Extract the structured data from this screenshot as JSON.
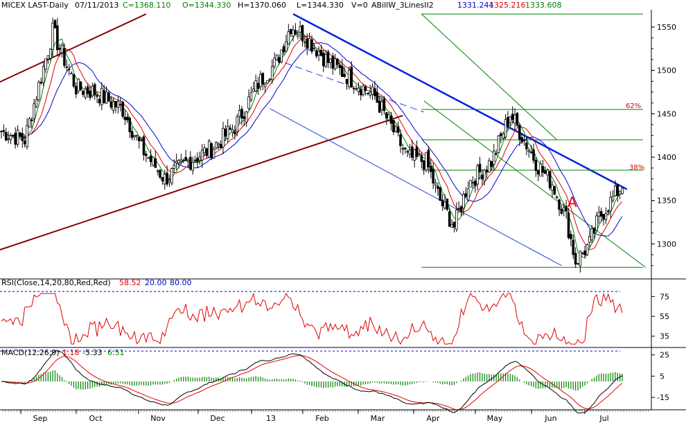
{
  "header": {
    "main": {
      "name": "MICEX LAST-Daily",
      "date": "07/11/2013",
      "close": "C=1368.110",
      "open": "O=1344.330",
      "high": "H=1370.060",
      "low": "L=1344.330",
      "volume": "V=0",
      "study": "ABillW_3LinesII2",
      "study_v1": "1331.244",
      "study_v2": "1325.216",
      "study_v3": "1333.608"
    },
    "rsi": {
      "label": "RSI(Close,14,20,80,Red,Red)",
      "value": "58.52",
      "low": "20.00",
      "high": "80.00"
    },
    "macd": {
      "label": "MACD(12,26,9)",
      "v1": "1.18",
      "v2": "-5.33",
      "v3": "6.51"
    }
  },
  "annotations": {
    "fib_62": "62%",
    "fib_38": "38%",
    "wave_label": "A"
  },
  "colors": {
    "green": "#008000",
    "red": "#e00000",
    "blue": "#0000cc",
    "trend_blue": "#0022dd",
    "maroon": "#800000",
    "gray_axis": "#808080"
  },
  "chart_data": [
    {
      "type": "candlestick",
      "title": "MICEX LAST-Daily",
      "x_months": [
        "Sep",
        "Oct",
        "Nov",
        "Dec",
        "13",
        "Feb",
        "Mar",
        "Apr",
        "May",
        "Jun",
        "Jul"
      ],
      "y_ticks": [
        1550,
        1500,
        1450,
        1400,
        1350,
        1300
      ],
      "ylim": [
        1262,
        1570
      ],
      "grid": false,
      "price_path": [
        [
          0,
          1430
        ],
        [
          10,
          1420
        ],
        [
          22,
          1545
        ],
        [
          32,
          1480
        ],
        [
          40,
          1475
        ],
        [
          52,
          1455
        ],
        [
          60,
          1410
        ],
        [
          70,
          1375
        ],
        [
          80,
          1395
        ],
        [
          90,
          1410
        ],
        [
          100,
          1435
        ],
        [
          110,
          1485
        ],
        [
          118,
          1510
        ],
        [
          124,
          1552
        ],
        [
          130,
          1540
        ],
        [
          140,
          1510
        ],
        [
          150,
          1490
        ],
        [
          160,
          1470
        ],
        [
          166,
          1440
        ],
        [
          174,
          1400
        ],
        [
          182,
          1395
        ],
        [
          188,
          1350
        ],
        [
          194,
          1320
        ],
        [
          200,
          1370
        ],
        [
          210,
          1395
        ],
        [
          218,
          1450
        ],
        [
          226,
          1410
        ],
        [
          230,
          1390
        ],
        [
          236,
          1370
        ],
        [
          242,
          1330
        ],
        [
          246,
          1280
        ],
        [
          252,
          1300
        ],
        [
          256,
          1330
        ],
        [
          260,
          1345
        ],
        [
          266,
          1368
        ]
      ],
      "total_bars": 266,
      "indicators": [
        {
          "name": "ABillW_3LinesII2 line 1",
          "values": "1331.244"
        },
        {
          "name": "ABillW_3LinesII2 line 2",
          "values": "1325.216"
        },
        {
          "name": "ABillW_3LinesII2 line 3",
          "values": "1333.608"
        }
      ],
      "fib_levels": [
        {
          "label": "62%",
          "value": 1455
        },
        {
          "label": "38%",
          "value": 1385
        }
      ],
      "extra_levels": [
        1565,
        1420,
        1273
      ],
      "wave_label": {
        "text": "A",
        "at": [
          246,
          1355
        ]
      }
    },
    {
      "type": "line",
      "title": "RSI(Close,14,20,80,Red,Red)",
      "y_ticks": [
        75,
        55,
        35
      ],
      "ylim": [
        25,
        85
      ],
      "bands": [
        80,
        20
      ],
      "last_value": 58.52
    },
    {
      "type": "line",
      "title": "MACD(12,26,9)",
      "y_ticks": [
        25,
        5,
        -15
      ],
      "ylim": [
        -26,
        30
      ],
      "last_values": [
        1.18,
        -5.33,
        6.51
      ]
    }
  ]
}
